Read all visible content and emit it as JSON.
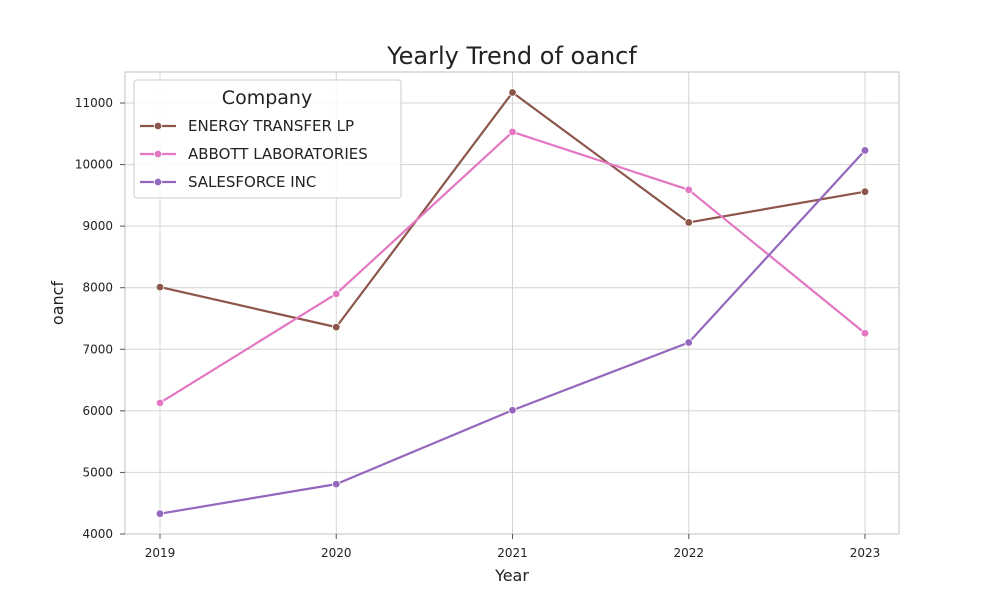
{
  "chart_data": {
    "type": "line",
    "title": "Yearly Trend of oancf",
    "xlabel": "Year",
    "ylabel": "oancf",
    "categories": [
      "2019",
      "2020",
      "2021",
      "2022",
      "2023"
    ],
    "y_ticks": [
      "4000",
      "5000",
      "6000",
      "7000",
      "8000",
      "9000",
      "10000",
      "11000"
    ],
    "ylim": [
      4000,
      11500
    ],
    "grid": true,
    "legend": {
      "title": "Company",
      "placement": "top-left"
    },
    "series": [
      {
        "name": "ENERGY TRANSFER LP",
        "color": "#8c564b",
        "values": [
          8010,
          7360,
          11170,
          9060,
          9560
        ]
      },
      {
        "name": "ABBOTT LABORATORIES",
        "color": "#e377c2",
        "values": [
          6130,
          7900,
          10530,
          9590,
          7260
        ]
      },
      {
        "name": "SALESFORCE INC",
        "color": "#9467bd",
        "values": [
          4330,
          4810,
          6010,
          7110,
          10230
        ]
      }
    ]
  }
}
